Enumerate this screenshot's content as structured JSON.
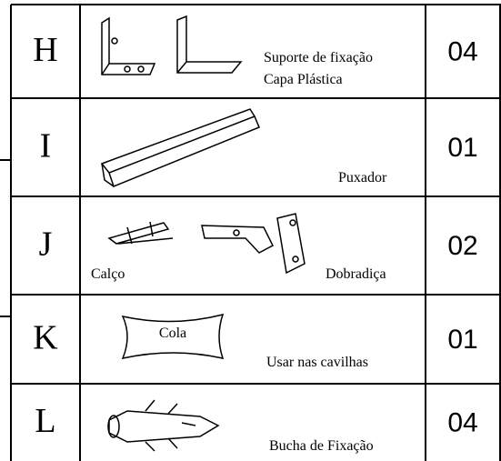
{
  "rows": [
    {
      "letter": "H",
      "labels": [
        "Suporte de fixação",
        "Capa Plástica"
      ],
      "quantity": "04"
    },
    {
      "letter": "I",
      "labels": [
        "Puxador"
      ],
      "quantity": "01"
    },
    {
      "letter": "J",
      "labels": [
        "Calço",
        "Dobradiça"
      ],
      "quantity": "02"
    },
    {
      "letter": "K",
      "labels": [
        "Cola",
        "Usar nas cavilhas"
      ],
      "quantity": "01"
    },
    {
      "letter": "L",
      "labels": [
        "Bucha de Fixação"
      ],
      "quantity": "04"
    }
  ]
}
